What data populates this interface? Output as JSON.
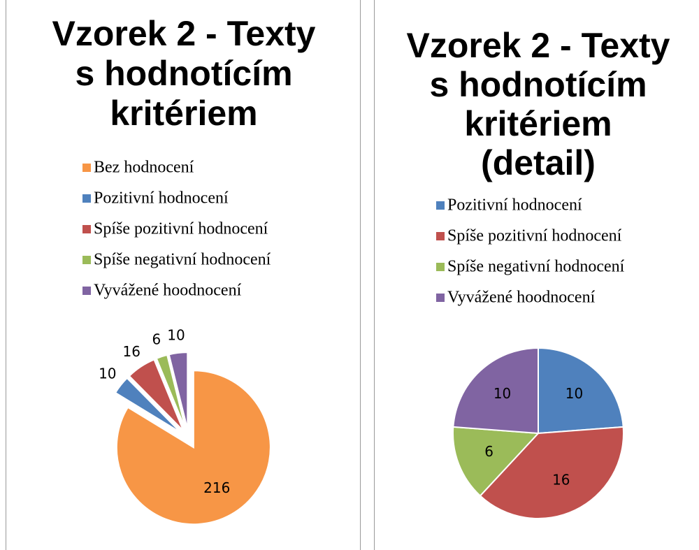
{
  "chart_data": [
    {
      "type": "pie",
      "title": [
        "Vzorek 2 - Texty",
        "s hodnotícím",
        "kritériem"
      ],
      "categories": [
        "Bez hodnocení",
        "Pozitivní hodnocení",
        "Spíše pozitivní hodnocení",
        "Spíše negativní hodnocení",
        "Vyvážené hoodnocení"
      ],
      "values": [
        216,
        10,
        16,
        6,
        10
      ],
      "colors": [
        "#f79646",
        "#4f81bd",
        "#c0504d",
        "#9bbb59",
        "#8064a2"
      ],
      "exploded": true
    },
    {
      "type": "pie",
      "title": [
        "Vzorek 2 - Texty",
        "s hodnotícím",
        "kritériem",
        "(detail)"
      ],
      "categories": [
        "Pozitivní hodnocení",
        "Spíše pozitivní hodnocení",
        "Spíše negativní hodnocení",
        "Vyvážené hoodnocení"
      ],
      "values": [
        10,
        16,
        6,
        10
      ],
      "colors": [
        "#4f81bd",
        "#c0504d",
        "#9bbb59",
        "#8064a2"
      ],
      "exploded": false
    }
  ]
}
